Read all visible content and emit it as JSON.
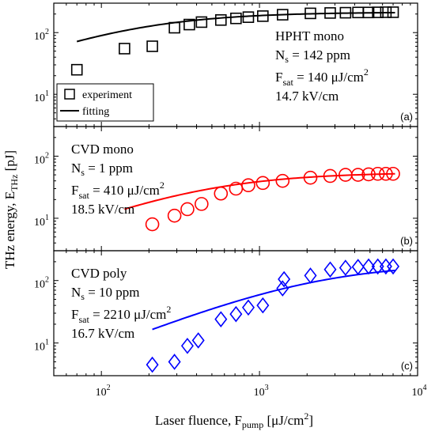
{
  "chart_data": {
    "type": "scatter",
    "x_scale": "log",
    "y_scale": "log",
    "shared_x": true,
    "xlabel": "Laser fluence, F",
    "xlabel_sub": "pump",
    "xlabel_unit": " [μJ/cm",
    "xlabel_unit_sup": "2",
    "xlabel_unit_end": "]",
    "ylabel": "THz energy, E",
    "ylabel_sub": "THz",
    "ylabel_unit": " [pJ]",
    "xlim": [
      50,
      10000
    ],
    "x_ticks": [
      {
        "value": 100,
        "base": "10",
        "exp": "2"
      },
      {
        "value": 1000,
        "base": "10",
        "exp": "3"
      },
      {
        "value": 10000,
        "base": "10",
        "exp": "4"
      }
    ],
    "legend": {
      "placement": "bottom-left of panel (a)",
      "entries": [
        {
          "label": "experiment",
          "marker": "square"
        },
        {
          "label": "fitting",
          "marker": "line"
        }
      ]
    },
    "panels": [
      {
        "tag": "(a)",
        "color": "#000000",
        "marker": "square",
        "ylim": [
          3,
          300
        ],
        "y_ticks": [
          {
            "value": 10,
            "base": "10",
            "exp": "1"
          },
          {
            "value": 100,
            "base": "10",
            "exp": "2"
          }
        ],
        "annotation": {
          "line1": "HPHT mono",
          "line2_base": "N",
          "line2_sub": "s",
          "line2_rest": " = 142 ppm",
          "line3_base": "F",
          "line3_sub": "sat",
          "line3_rest": " = 140 μJ/cm",
          "line3_sup": "2",
          "line4": "14.7 kV/cm"
        },
        "fit": {
          "E_max": 215,
          "F_sat": 140,
          "x_range": [
            70,
            7200
          ]
        },
        "points": [
          {
            "x": 70,
            "y": 25
          },
          {
            "x": 140,
            "y": 55
          },
          {
            "x": 210,
            "y": 60
          },
          {
            "x": 290,
            "y": 120
          },
          {
            "x": 360,
            "y": 135
          },
          {
            "x": 430,
            "y": 148
          },
          {
            "x": 570,
            "y": 160
          },
          {
            "x": 710,
            "y": 170
          },
          {
            "x": 850,
            "y": 178
          },
          {
            "x": 1050,
            "y": 185
          },
          {
            "x": 1400,
            "y": 195
          },
          {
            "x": 2100,
            "y": 205
          },
          {
            "x": 2800,
            "y": 208
          },
          {
            "x": 3500,
            "y": 210
          },
          {
            "x": 4200,
            "y": 212
          },
          {
            "x": 4900,
            "y": 212
          },
          {
            "x": 5600,
            "y": 213
          },
          {
            "x": 6300,
            "y": 214
          },
          {
            "x": 7000,
            "y": 214
          }
        ]
      },
      {
        "tag": "(b)",
        "color": "#ff0000",
        "marker": "circle",
        "ylim": [
          3,
          300
        ],
        "y_ticks": [
          {
            "value": 10,
            "base": "10",
            "exp": "1"
          },
          {
            "value": 100,
            "base": "10",
            "exp": "2"
          }
        ],
        "annotation": {
          "line1": "CVD mono",
          "line2_base": "N",
          "line2_sub": "s",
          "line2_rest": " =   1 ppm",
          "line3_base": "F",
          "line3_sub": "sat",
          "line3_rest": " = 410 μJ/cm",
          "line3_sup": "2",
          "line4": "18.5 kV/cm"
        },
        "fit": {
          "E_max": 55,
          "F_sat": 410,
          "x_range": [
            140,
            7200
          ]
        },
        "points": [
          {
            "x": 210,
            "y": 8
          },
          {
            "x": 290,
            "y": 11
          },
          {
            "x": 350,
            "y": 14
          },
          {
            "x": 430,
            "y": 17
          },
          {
            "x": 570,
            "y": 25
          },
          {
            "x": 710,
            "y": 30
          },
          {
            "x": 850,
            "y": 34
          },
          {
            "x": 1050,
            "y": 37
          },
          {
            "x": 1400,
            "y": 40
          },
          {
            "x": 2100,
            "y": 45
          },
          {
            "x": 2800,
            "y": 48
          },
          {
            "x": 3500,
            "y": 50
          },
          {
            "x": 4200,
            "y": 50
          },
          {
            "x": 4900,
            "y": 51
          },
          {
            "x": 5600,
            "y": 52
          },
          {
            "x": 6300,
            "y": 52
          },
          {
            "x": 7000,
            "y": 52
          }
        ]
      },
      {
        "tag": "(c)",
        "color": "#0000ff",
        "marker": "diamond",
        "ylim": [
          3,
          300
        ],
        "y_ticks": [
          {
            "value": 10,
            "base": "10",
            "exp": "1"
          },
          {
            "value": 100,
            "base": "10",
            "exp": "2"
          }
        ],
        "annotation": {
          "line1": "CVD poly",
          "line2_base": "N",
          "line2_sub": "s",
          "line2_rest": " =  10 ppm",
          "line3_base": "F",
          "line3_sub": "sat",
          "line3_rest": " = 2210 μJ/cm",
          "line3_sup": "2",
          "line4": "16.7 kV/cm"
        },
        "fit": {
          "E_max": 190,
          "F_sat": 2210,
          "x_range": [
            210,
            7200
          ]
        },
        "points": [
          {
            "x": 210,
            "y": 4.5
          },
          {
            "x": 290,
            "y": 5
          },
          {
            "x": 350,
            "y": 9
          },
          {
            "x": 410,
            "y": 11
          },
          {
            "x": 570,
            "y": 24
          },
          {
            "x": 710,
            "y": 29
          },
          {
            "x": 850,
            "y": 37
          },
          {
            "x": 1050,
            "y": 40
          },
          {
            "x": 1400,
            "y": 75
          },
          {
            "x": 1430,
            "y": 105
          },
          {
            "x": 2100,
            "y": 120
          },
          {
            "x": 2800,
            "y": 150
          },
          {
            "x": 3500,
            "y": 160
          },
          {
            "x": 4200,
            "y": 165
          },
          {
            "x": 4900,
            "y": 168
          },
          {
            "x": 5600,
            "y": 168
          },
          {
            "x": 6300,
            "y": 168
          },
          {
            "x": 7000,
            "y": 168
          }
        ]
      }
    ]
  }
}
